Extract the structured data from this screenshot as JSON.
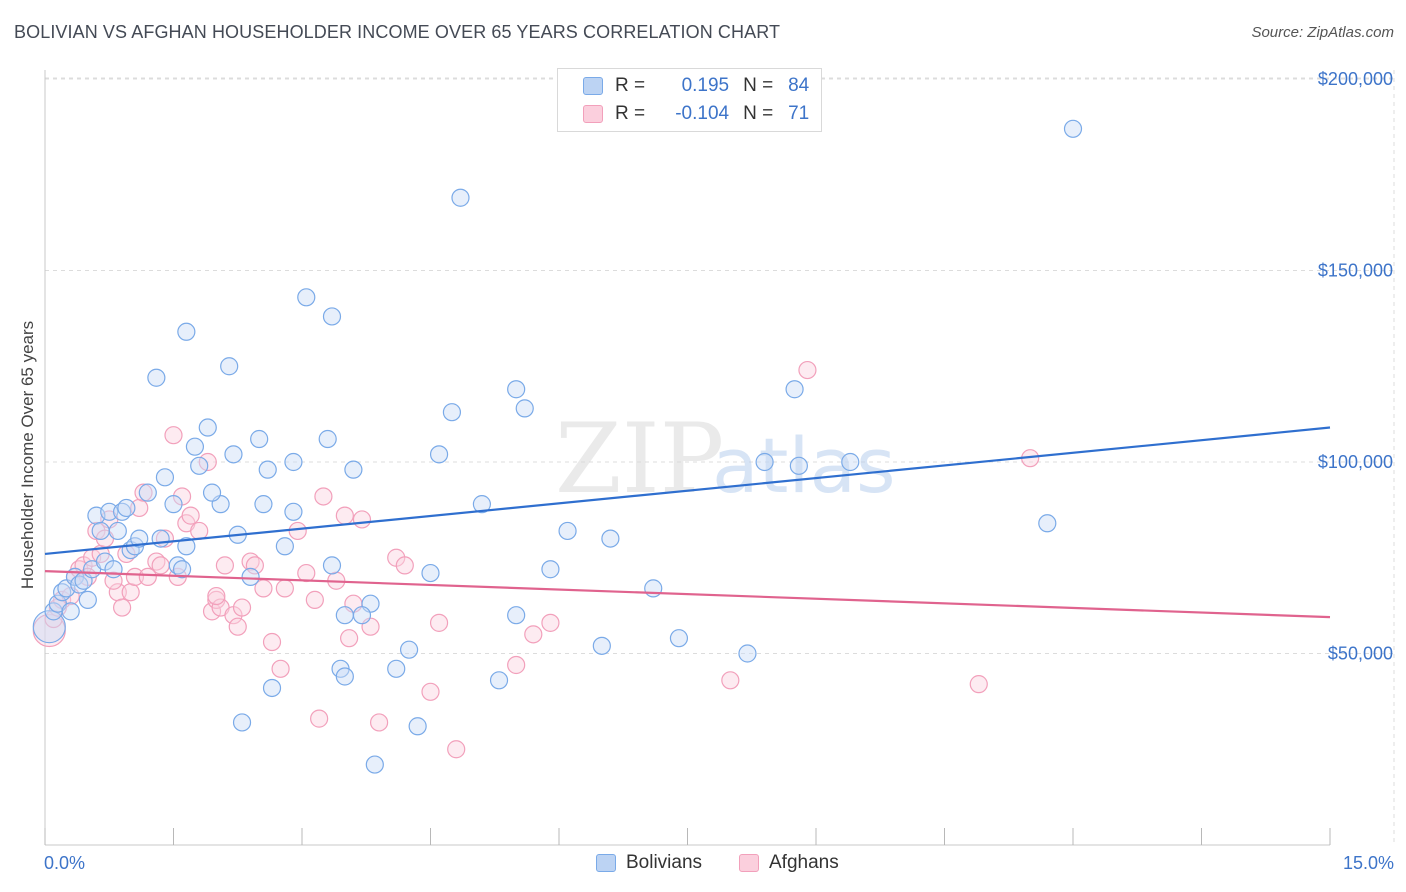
{
  "title": "BOLIVIAN VS AFGHAN HOUSEHOLDER INCOME OVER 65 YEARS CORRELATION CHART",
  "source": "Source: ZipAtlas.com",
  "watermark": {
    "zip": "ZIP",
    "atlas": "atlas"
  },
  "legend": {
    "rows": [
      {
        "r_label": "R =",
        "r_value": "0.195",
        "n_label": "N =",
        "n_value": "84"
      },
      {
        "r_label": "R =",
        "r_value": "-0.104",
        "n_label": "N =",
        "n_value": "71"
      }
    ]
  },
  "chart_data": {
    "type": "scatter",
    "xlabel": "",
    "ylabel": "Householder Income Over 65 years",
    "xlim": [
      0,
      15
    ],
    "ylim": [
      0,
      210000
    ],
    "x_tick_labels": [
      "0.0%",
      "15.0%"
    ],
    "y_ticks": [
      50000,
      100000,
      150000,
      200000
    ],
    "y_tick_labels": [
      "$50,000",
      "$100,000",
      "$150,000",
      "$200,000"
    ],
    "grid": true,
    "legend_position": "top-center",
    "colors": {
      "bolivians": "#7aaae8",
      "afghans": "#f2a0bb",
      "blue_line": "#2f6fcf",
      "pink_line": "#e0638e"
    },
    "series": [
      {
        "name": "Bolivians",
        "trend": [
          [
            0,
            76000
          ],
          [
            15,
            109000
          ]
        ],
        "points": [
          [
            0.05,
            57000
          ],
          [
            0.1,
            61000
          ],
          [
            0.15,
            63000
          ],
          [
            0.2,
            66000
          ],
          [
            0.25,
            67000
          ],
          [
            0.3,
            61000
          ],
          [
            0.35,
            70000
          ],
          [
            0.4,
            68000
          ],
          [
            0.45,
            69000
          ],
          [
            0.5,
            64000
          ],
          [
            0.55,
            72000
          ],
          [
            0.6,
            86000
          ],
          [
            0.65,
            82000
          ],
          [
            0.7,
            74000
          ],
          [
            0.75,
            87000
          ],
          [
            0.8,
            72000
          ],
          [
            0.85,
            82000
          ],
          [
            0.9,
            87000
          ],
          [
            0.95,
            88000
          ],
          [
            1.0,
            77000
          ],
          [
            1.05,
            78000
          ],
          [
            1.1,
            80000
          ],
          [
            1.2,
            92000
          ],
          [
            1.35,
            80000
          ],
          [
            1.4,
            96000
          ],
          [
            1.5,
            89000
          ],
          [
            1.55,
            73000
          ],
          [
            1.6,
            72000
          ],
          [
            1.65,
            78000
          ],
          [
            1.75,
            104000
          ],
          [
            1.8,
            99000
          ],
          [
            1.9,
            109000
          ],
          [
            2.05,
            89000
          ],
          [
            2.2,
            102000
          ],
          [
            2.25,
            81000
          ],
          [
            2.4,
            70000
          ],
          [
            2.5,
            106000
          ],
          [
            2.55,
            89000
          ],
          [
            2.6,
            98000
          ],
          [
            2.8,
            78000
          ],
          [
            2.9,
            100000
          ],
          [
            2.9,
            87000
          ],
          [
            3.05,
            143000
          ],
          [
            3.3,
            106000
          ],
          [
            3.35,
            138000
          ],
          [
            3.6,
            98000
          ],
          [
            3.5,
            60000
          ],
          [
            3.8,
            63000
          ],
          [
            3.35,
            73000
          ],
          [
            3.45,
            46000
          ],
          [
            3.5,
            44000
          ],
          [
            3.7,
            60000
          ],
          [
            3.85,
            21000
          ],
          [
            4.1,
            46000
          ],
          [
            4.25,
            51000
          ],
          [
            4.35,
            31000
          ],
          [
            4.5,
            71000
          ],
          [
            4.6,
            102000
          ],
          [
            4.75,
            113000
          ],
          [
            4.85,
            169000
          ],
          [
            5.1,
            89000
          ],
          [
            5.3,
            43000
          ],
          [
            5.5,
            119000
          ],
          [
            5.6,
            114000
          ],
          [
            5.5,
            60000
          ],
          [
            5.9,
            72000
          ],
          [
            6.1,
            82000
          ],
          [
            6.5,
            52000
          ],
          [
            6.6,
            80000
          ],
          [
            7.1,
            67000
          ],
          [
            7.4,
            54000
          ],
          [
            8.2,
            50000
          ],
          [
            8.4,
            100000
          ],
          [
            8.75,
            119000
          ],
          [
            8.8,
            99000
          ],
          [
            9.4,
            100000
          ],
          [
            12.0,
            187000
          ],
          [
            11.7,
            84000
          ],
          [
            1.3,
            122000
          ],
          [
            1.65,
            134000
          ],
          [
            2.15,
            125000
          ],
          [
            1.95,
            92000
          ],
          [
            2.65,
            41000
          ],
          [
            2.3,
            32000
          ]
        ]
      },
      {
        "name": "Afghans",
        "trend": [
          [
            0,
            71500
          ],
          [
            15,
            59500
          ]
        ],
        "points": [
          [
            0.05,
            56000
          ],
          [
            0.1,
            59000
          ],
          [
            0.15,
            62000
          ],
          [
            0.2,
            64000
          ],
          [
            0.3,
            65000
          ],
          [
            0.35,
            70000
          ],
          [
            0.4,
            72000
          ],
          [
            0.45,
            73000
          ],
          [
            0.5,
            70000
          ],
          [
            0.55,
            75000
          ],
          [
            0.6,
            82000
          ],
          [
            0.65,
            76000
          ],
          [
            0.7,
            80000
          ],
          [
            0.75,
            85000
          ],
          [
            0.85,
            66000
          ],
          [
            0.9,
            62000
          ],
          [
            0.95,
            76000
          ],
          [
            1.0,
            66000
          ],
          [
            1.05,
            70000
          ],
          [
            1.1,
            88000
          ],
          [
            1.15,
            92000
          ],
          [
            1.2,
            70000
          ],
          [
            1.3,
            74000
          ],
          [
            1.35,
            73000
          ],
          [
            1.4,
            80000
          ],
          [
            1.5,
            107000
          ],
          [
            1.55,
            70000
          ],
          [
            1.6,
            91000
          ],
          [
            1.65,
            84000
          ],
          [
            1.7,
            86000
          ],
          [
            1.8,
            82000
          ],
          [
            1.9,
            100000
          ],
          [
            1.95,
            61000
          ],
          [
            2.0,
            64000
          ],
          [
            2.05,
            62000
          ],
          [
            2.1,
            73000
          ],
          [
            2.2,
            60000
          ],
          [
            2.25,
            57000
          ],
          [
            2.3,
            62000
          ],
          [
            2.4,
            74000
          ],
          [
            2.45,
            73000
          ],
          [
            2.55,
            67000
          ],
          [
            2.65,
            53000
          ],
          [
            2.75,
            46000
          ],
          [
            2.8,
            67000
          ],
          [
            2.95,
            82000
          ],
          [
            3.05,
            71000
          ],
          [
            3.15,
            64000
          ],
          [
            3.25,
            91000
          ],
          [
            3.4,
            69000
          ],
          [
            3.5,
            86000
          ],
          [
            3.55,
            54000
          ],
          [
            3.6,
            63000
          ],
          [
            3.7,
            85000
          ],
          [
            3.8,
            57000
          ],
          [
            3.9,
            32000
          ],
          [
            4.1,
            75000
          ],
          [
            4.2,
            73000
          ],
          [
            4.5,
            40000
          ],
          [
            4.6,
            58000
          ],
          [
            4.8,
            25000
          ],
          [
            5.5,
            47000
          ],
          [
            5.7,
            55000
          ],
          [
            5.9,
            58000
          ],
          [
            3.2,
            33000
          ],
          [
            8.0,
            43000
          ],
          [
            8.9,
            124000
          ],
          [
            10.9,
            42000
          ],
          [
            11.5,
            101000
          ],
          [
            2.0,
            65000
          ],
          [
            0.8,
            69000
          ]
        ]
      }
    ]
  },
  "bottom_legend": [
    {
      "label": "Bolivians"
    },
    {
      "label": "Afghans"
    }
  ]
}
